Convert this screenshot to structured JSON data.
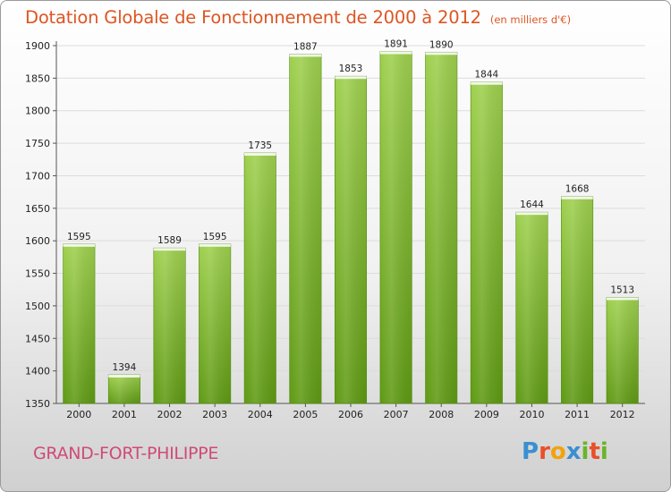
{
  "header": {
    "title": "Dotation Globale de Fonctionnement de 2000 à 2012",
    "unit": "(en milliers d'€)"
  },
  "footer": {
    "commune": "GRAND-FORT-PHILIPPE",
    "logo": "Proxiti"
  },
  "colors": {
    "title": "#dd5522",
    "commune": "#d04a78",
    "bar_top": "#9fd04f",
    "bar_bottom": "#5f9a14",
    "logo_letters": [
      "#3a8fd0",
      "#e8502a",
      "#f2a20c",
      "#3a8fd0",
      "#6ab42a",
      "#e8502a",
      "#6ab42a"
    ]
  },
  "chart_data": {
    "type": "bar",
    "categories": [
      "2000",
      "2001",
      "2002",
      "2003",
      "2004",
      "2005",
      "2006",
      "2007",
      "2008",
      "2009",
      "2010",
      "2011",
      "2012"
    ],
    "values": [
      1595,
      1394,
      1589,
      1595,
      1735,
      1887,
      1853,
      1891,
      1890,
      1844,
      1644,
      1668,
      1513
    ],
    "ylim": [
      1350,
      1900
    ],
    "yticks": [
      1350,
      1400,
      1450,
      1500,
      1550,
      1600,
      1650,
      1700,
      1750,
      1800,
      1850,
      1900
    ],
    "grid": true,
    "data_labels": true
  }
}
